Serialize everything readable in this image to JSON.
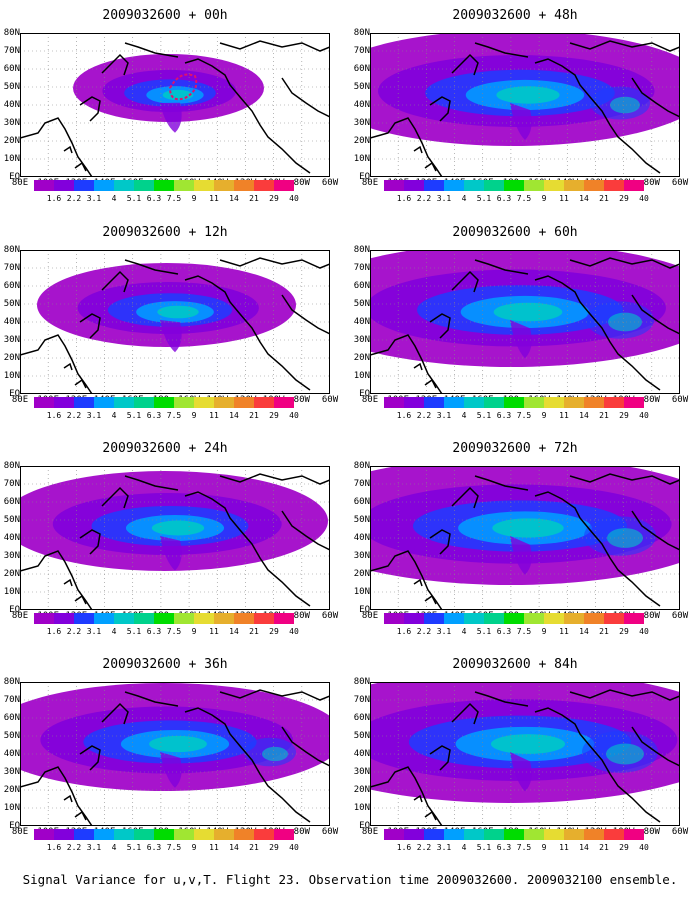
{
  "caption": "Signal Variance for u,v,T. Flight 23. Observation time 2009032600. 2009032100 ensemble.",
  "colorbar": {
    "labels": [
      "1.6",
      "2.2",
      "3.1",
      "4",
      "5.1",
      "6.3",
      "7.5",
      "9",
      "11",
      "14",
      "21",
      "29",
      "40"
    ],
    "colors": [
      "#a000c8",
      "#8200dc",
      "#1e3cff",
      "#00a0ff",
      "#00c8c8",
      "#00d28c",
      "#00dc00",
      "#a0e632",
      "#e6dc32",
      "#e6af2d",
      "#f08228",
      "#fa3c3c",
      "#f00082"
    ]
  },
  "axes": {
    "lat_labels": [
      "80N",
      "70N",
      "60N",
      "50N",
      "40N",
      "30N",
      "20N",
      "10N",
      "EQ"
    ],
    "lon_labels": [
      "80E",
      "100E",
      "120E",
      "140E",
      "160E",
      "180",
      "160W",
      "140W",
      "120W",
      "100W",
      "80W",
      "60W"
    ]
  },
  "panels": [
    {
      "title": "2009032600 + 00h",
      "spread": 0.15,
      "intensity": 0.55
    },
    {
      "title": "2009032600 + 48h",
      "spread": 0.75,
      "intensity": 0.45
    },
    {
      "title": "2009032600 + 12h",
      "spread": 0.35,
      "intensity": 0.5
    },
    {
      "title": "2009032600 + 60h",
      "spread": 0.85,
      "intensity": 0.5
    },
    {
      "title": "2009032600 + 24h",
      "spread": 0.55,
      "intensity": 0.5
    },
    {
      "title": "2009032600 + 72h",
      "spread": 0.9,
      "intensity": 0.55
    },
    {
      "title": "2009032600 + 36h",
      "spread": 0.65,
      "intensity": 0.5
    },
    {
      "title": "2009032600 + 84h",
      "spread": 0.95,
      "intensity": 0.65
    }
  ]
}
